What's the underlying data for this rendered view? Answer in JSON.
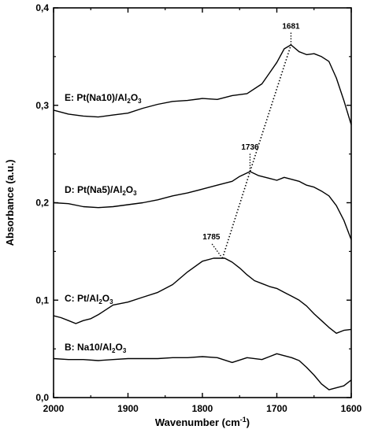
{
  "chart_data": {
    "type": "line",
    "xlabel": "Wavenumber (cm",
    "xlabel_sup": "-1",
    "xlabel_end": ")",
    "ylabel": "Absorbance (a.u.)",
    "xlim": [
      2000,
      1600
    ],
    "ylim": [
      0.0,
      0.4
    ],
    "x_ticks": [
      2000,
      1900,
      1800,
      1700,
      1600
    ],
    "y_ticks": [
      {
        "value": 0.0,
        "label": "0,0"
      },
      {
        "value": 0.1,
        "label": "0,1"
      },
      {
        "value": 0.2,
        "label": "0,2"
      },
      {
        "value": 0.3,
        "label": "0,3"
      },
      {
        "value": 0.4,
        "label": "0,4"
      }
    ],
    "grid": false,
    "series": [
      {
        "name": "E: Pt(Na10)/Al2O3",
        "label_main": "E: Pt(Na10)/Al",
        "label_sub1": "2",
        "label_mid": "O",
        "label_sub2": "3",
        "x": [
          2000,
          1980,
          1960,
          1940,
          1920,
          1900,
          1880,
          1860,
          1840,
          1820,
          1800,
          1780,
          1760,
          1740,
          1720,
          1710,
          1700,
          1690,
          1681,
          1670,
          1660,
          1650,
          1640,
          1630,
          1620,
          1610,
          1600
        ],
        "y": [
          0.295,
          0.291,
          0.289,
          0.288,
          0.29,
          0.292,
          0.297,
          0.301,
          0.304,
          0.305,
          0.307,
          0.306,
          0.31,
          0.312,
          0.322,
          0.333,
          0.344,
          0.358,
          0.362,
          0.355,
          0.352,
          0.353,
          0.35,
          0.345,
          0.328,
          0.305,
          0.28
        ]
      },
      {
        "name": "D: Pt(Na5)/Al2O3",
        "label_main": "D: Pt(Na5)/Al",
        "label_sub1": "2",
        "label_mid": "O",
        "label_sub2": "3",
        "x": [
          2000,
          1980,
          1960,
          1940,
          1920,
          1900,
          1880,
          1860,
          1840,
          1820,
          1800,
          1780,
          1760,
          1750,
          1736,
          1725,
          1710,
          1700,
          1690,
          1680,
          1670,
          1660,
          1650,
          1640,
          1630,
          1620,
          1610,
          1600
        ],
        "y": [
          0.2,
          0.199,
          0.196,
          0.195,
          0.196,
          0.198,
          0.2,
          0.203,
          0.207,
          0.21,
          0.214,
          0.218,
          0.222,
          0.227,
          0.232,
          0.228,
          0.225,
          0.223,
          0.226,
          0.224,
          0.222,
          0.218,
          0.216,
          0.212,
          0.207,
          0.197,
          0.182,
          0.162
        ]
      },
      {
        "name": "C: Pt/Al2O3",
        "label_main": "C: Pt/Al",
        "label_sub1": "2",
        "label_mid": "O",
        "label_sub2": "3",
        "x": [
          2000,
          1990,
          1980,
          1970,
          1960,
          1950,
          1940,
          1920,
          1900,
          1880,
          1860,
          1840,
          1820,
          1800,
          1785,
          1770,
          1760,
          1750,
          1740,
          1730,
          1720,
          1710,
          1700,
          1690,
          1680,
          1670,
          1660,
          1650,
          1640,
          1630,
          1620,
          1610,
          1600
        ],
        "y": [
          0.084,
          0.082,
          0.079,
          0.076,
          0.079,
          0.081,
          0.085,
          0.095,
          0.098,
          0.103,
          0.108,
          0.116,
          0.129,
          0.14,
          0.143,
          0.143,
          0.139,
          0.133,
          0.126,
          0.12,
          0.117,
          0.114,
          0.112,
          0.108,
          0.104,
          0.1,
          0.094,
          0.086,
          0.079,
          0.072,
          0.066,
          0.069,
          0.07
        ]
      },
      {
        "name": "B: Na10/Al2O3",
        "label_main": "B: Na10/Al",
        "label_sub1": "2",
        "label_mid": "O",
        "label_sub2": "3",
        "x": [
          2000,
          1980,
          1960,
          1940,
          1920,
          1900,
          1880,
          1860,
          1840,
          1820,
          1800,
          1780,
          1760,
          1740,
          1720,
          1710,
          1700,
          1690,
          1680,
          1670,
          1660,
          1650,
          1640,
          1630,
          1620,
          1610,
          1600
        ],
        "y": [
          0.04,
          0.039,
          0.039,
          0.038,
          0.039,
          0.04,
          0.04,
          0.04,
          0.041,
          0.041,
          0.042,
          0.041,
          0.036,
          0.041,
          0.039,
          0.042,
          0.045,
          0.043,
          0.041,
          0.038,
          0.031,
          0.023,
          0.014,
          0.008,
          0.01,
          0.012,
          0.018
        ]
      }
    ],
    "annotations": [
      {
        "label": "1681",
        "from": {
          "x": 1681,
          "y": 0.362
        },
        "text_at": {
          "x": 1681,
          "y": 0.377
        }
      },
      {
        "label": "1736",
        "from": {
          "x": 1736,
          "y": 0.232
        },
        "text_at": {
          "x": 1736,
          "y": 0.253
        }
      },
      {
        "label": "1785",
        "from": {
          "x": 1773,
          "y": 0.143
        },
        "text_at": {
          "x": 1788,
          "y": 0.161
        }
      }
    ],
    "peak_trend": {
      "style": "dotted",
      "points": [
        {
          "x": 1773,
          "y": 0.143
        },
        {
          "x": 1736,
          "y": 0.232
        },
        {
          "x": 1681,
          "y": 0.362
        }
      ]
    }
  }
}
